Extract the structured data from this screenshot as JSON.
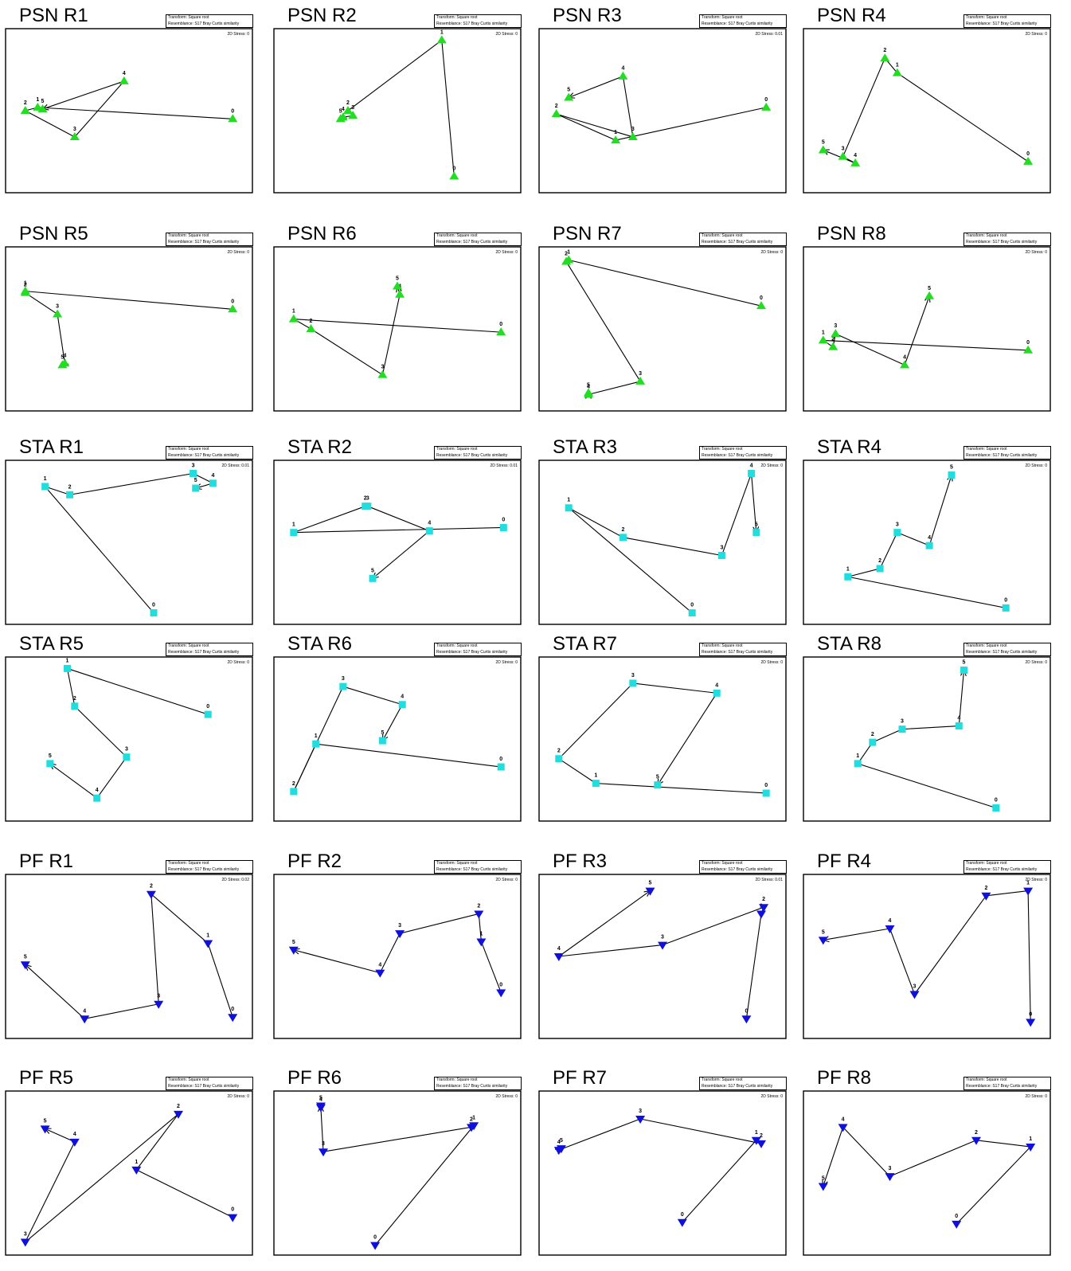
{
  "chart_data": [
    {
      "title": "PSN R1",
      "transform": "Transform: Square root",
      "resemblance": "Resemblance: S17 Bray Curtis similarity",
      "stress": "2D Stress: 0",
      "marker": "triangle-up",
      "color": "#22dd22",
      "points": [
        {
          "label": "0",
          "x": 0.92,
          "y": 0.55
        },
        {
          "label": "1",
          "x": 0.13,
          "y": 0.48
        },
        {
          "label": "2",
          "x": 0.08,
          "y": 0.5
        },
        {
          "label": "3",
          "x": 0.28,
          "y": 0.66
        },
        {
          "label": "4",
          "x": 0.48,
          "y": 0.32
        },
        {
          "label": "5",
          "x": 0.15,
          "y": 0.49
        }
      ]
    },
    {
      "title": "PSN R2",
      "transform": "Transform: Square root",
      "resemblance": "Resemblance: S17 Bray Curtis similarity",
      "stress": "2D Stress: 0",
      "marker": "triangle-up",
      "color": "#22dd22",
      "points": [
        {
          "label": "0",
          "x": 0.73,
          "y": 0.9
        },
        {
          "label": "1",
          "x": 0.68,
          "y": 0.07
        },
        {
          "label": "2",
          "x": 0.3,
          "y": 0.5
        },
        {
          "label": "3",
          "x": 0.32,
          "y": 0.53
        },
        {
          "label": "4",
          "x": 0.28,
          "y": 0.54
        },
        {
          "label": "5",
          "x": 0.27,
          "y": 0.55
        }
      ]
    },
    {
      "title": "PSN R3",
      "transform": "Transform: Square root",
      "resemblance": "Resemblance: S17 Bray Curtis similarity",
      "stress": "2D Stress: 0.01",
      "marker": "triangle-up",
      "color": "#22dd22",
      "points": [
        {
          "label": "0",
          "x": 0.92,
          "y": 0.48
        },
        {
          "label": "1",
          "x": 0.31,
          "y": 0.68
        },
        {
          "label": "2",
          "x": 0.07,
          "y": 0.52
        },
        {
          "label": "3",
          "x": 0.38,
          "y": 0.66
        },
        {
          "label": "4",
          "x": 0.34,
          "y": 0.29
        },
        {
          "label": "5",
          "x": 0.12,
          "y": 0.42
        }
      ]
    },
    {
      "title": "PSN R4",
      "transform": "Transform: Square root",
      "resemblance": "Resemblance: S17 Bray Curtis similarity",
      "stress": "2D Stress: 0",
      "marker": "triangle-up",
      "color": "#22dd22",
      "points": [
        {
          "label": "0",
          "x": 0.91,
          "y": 0.81
        },
        {
          "label": "1",
          "x": 0.38,
          "y": 0.27
        },
        {
          "label": "2",
          "x": 0.33,
          "y": 0.18
        },
        {
          "label": "3",
          "x": 0.16,
          "y": 0.78
        },
        {
          "label": "4",
          "x": 0.21,
          "y": 0.82
        },
        {
          "label": "5",
          "x": 0.08,
          "y": 0.74
        }
      ]
    },
    {
      "title": "PSN R5",
      "transform": "Transform: Square root",
      "resemblance": "Resemblance: S17 Bray Curtis similarity",
      "stress": "2D Stress: 0",
      "marker": "triangle-up",
      "color": "#22dd22",
      "points": [
        {
          "label": "0",
          "x": 0.92,
          "y": 0.38
        },
        {
          "label": "1",
          "x": 0.08,
          "y": 0.27
        },
        {
          "label": "2",
          "x": 0.08,
          "y": 0.28
        },
        {
          "label": "3",
          "x": 0.21,
          "y": 0.41
        },
        {
          "label": "4",
          "x": 0.24,
          "y": 0.71
        },
        {
          "label": "5",
          "x": 0.23,
          "y": 0.72
        }
      ]
    },
    {
      "title": "PSN R6",
      "transform": "Transform: Square root",
      "resemblance": "Resemblance: S17 Bray Curtis similarity",
      "stress": "2D Stress: 0",
      "marker": "triangle-up",
      "color": "#22dd22",
      "points": [
        {
          "label": "0",
          "x": 0.92,
          "y": 0.52
        },
        {
          "label": "1",
          "x": 0.08,
          "y": 0.44
        },
        {
          "label": "2",
          "x": 0.15,
          "y": 0.5
        },
        {
          "label": "3",
          "x": 0.44,
          "y": 0.78
        },
        {
          "label": "4",
          "x": 0.51,
          "y": 0.29
        },
        {
          "label": "5",
          "x": 0.5,
          "y": 0.24
        }
      ]
    },
    {
      "title": "PSN R7",
      "transform": "Transform: Square root",
      "resemblance": "Resemblance: S17 Bray Curtis similarity",
      "stress": "2D Stress: 0",
      "marker": "triangle-up",
      "color": "#22dd22",
      "points": [
        {
          "label": "0",
          "x": 0.9,
          "y": 0.36
        },
        {
          "label": "1",
          "x": 0.12,
          "y": 0.08
        },
        {
          "label": "2",
          "x": 0.11,
          "y": 0.09
        },
        {
          "label": "3",
          "x": 0.41,
          "y": 0.82
        },
        {
          "label": "4",
          "x": 0.2,
          "y": 0.9
        },
        {
          "label": "5",
          "x": 0.2,
          "y": 0.89
        }
      ]
    },
    {
      "title": "PSN R8",
      "transform": "Transform: Square root",
      "resemblance": "Resemblance: S17 Bray Curtis similarity",
      "stress": "2D Stress: 0",
      "marker": "triangle-up",
      "color": "#22dd22",
      "points": [
        {
          "label": "0",
          "x": 0.91,
          "y": 0.63
        },
        {
          "label": "1",
          "x": 0.08,
          "y": 0.57
        },
        {
          "label": "2",
          "x": 0.12,
          "y": 0.61
        },
        {
          "label": "3",
          "x": 0.13,
          "y": 0.53
        },
        {
          "label": "4",
          "x": 0.41,
          "y": 0.72
        },
        {
          "label": "5",
          "x": 0.51,
          "y": 0.3
        }
      ]
    },
    {
      "title": "STA R1",
      "transform": "Transform: Square root",
      "resemblance": "Resemblance: S17 Bray Curtis similarity",
      "stress": "2D Stress: 0.01",
      "marker": "square",
      "color": "#22dddd",
      "points": [
        {
          "label": "0",
          "x": 0.6,
          "y": 0.93
        },
        {
          "label": "1",
          "x": 0.16,
          "y": 0.16
        },
        {
          "label": "2",
          "x": 0.26,
          "y": 0.21
        },
        {
          "label": "3",
          "x": 0.76,
          "y": 0.08
        },
        {
          "label": "4",
          "x": 0.84,
          "y": 0.14
        },
        {
          "label": "5",
          "x": 0.77,
          "y": 0.17
        }
      ]
    },
    {
      "title": "STA R2",
      "transform": "Transform: Square root",
      "resemblance": "Resemblance: S17 Bray Curtis similarity",
      "stress": "2D Stress: 0.01",
      "marker": "square",
      "color": "#22dddd",
      "points": [
        {
          "label": "0",
          "x": 0.93,
          "y": 0.41
        },
        {
          "label": "1",
          "x": 0.08,
          "y": 0.44
        },
        {
          "label": "2",
          "x": 0.37,
          "y": 0.28
        },
        {
          "label": "3",
          "x": 0.38,
          "y": 0.28
        },
        {
          "label": "4",
          "x": 0.63,
          "y": 0.43
        },
        {
          "label": "5",
          "x": 0.4,
          "y": 0.72
        }
      ]
    },
    {
      "title": "STA R3",
      "transform": "Transform: Square root",
      "resemblance": "Resemblance: S17 Bray Curtis similarity",
      "stress": "2D Stress: 0",
      "marker": "square",
      "color": "#22dddd",
      "points": [
        {
          "label": "0",
          "x": 0.62,
          "y": 0.93
        },
        {
          "label": "1",
          "x": 0.12,
          "y": 0.29
        },
        {
          "label": "2",
          "x": 0.34,
          "y": 0.47
        },
        {
          "label": "3",
          "x": 0.74,
          "y": 0.58
        },
        {
          "label": "4",
          "x": 0.86,
          "y": 0.08
        },
        {
          "label": "5",
          "x": 0.88,
          "y": 0.44
        }
      ]
    },
    {
      "title": "STA R4",
      "transform": "Transform: Square root",
      "resemblance": "Resemblance: S17 Bray Curtis similarity",
      "stress": "2D Stress: 0",
      "marker": "square",
      "color": "#22dddd",
      "points": [
        {
          "label": "0",
          "x": 0.82,
          "y": 0.9
        },
        {
          "label": "1",
          "x": 0.18,
          "y": 0.71
        },
        {
          "label": "2",
          "x": 0.31,
          "y": 0.66
        },
        {
          "label": "3",
          "x": 0.38,
          "y": 0.44
        },
        {
          "label": "4",
          "x": 0.51,
          "y": 0.52
        },
        {
          "label": "5",
          "x": 0.6,
          "y": 0.09
        }
      ]
    },
    {
      "title": "STA R5",
      "transform": "Transform: Square root",
      "resemblance": "Resemblance: S17 Bray Curtis similarity",
      "stress": "2D Stress: 0",
      "marker": "square",
      "color": "#22dddd",
      "points": [
        {
          "label": "0",
          "x": 0.82,
          "y": 0.35
        },
        {
          "label": "1",
          "x": 0.25,
          "y": 0.07
        },
        {
          "label": "2",
          "x": 0.28,
          "y": 0.3
        },
        {
          "label": "3",
          "x": 0.49,
          "y": 0.61
        },
        {
          "label": "4",
          "x": 0.37,
          "y": 0.86
        },
        {
          "label": "5",
          "x": 0.18,
          "y": 0.65
        }
      ]
    },
    {
      "title": "STA R6",
      "transform": "Transform: Square root",
      "resemblance": "Resemblance: S17 Bray Curtis similarity",
      "stress": "2D Stress: 0",
      "marker": "square",
      "color": "#22dddd",
      "points": [
        {
          "label": "0",
          "x": 0.92,
          "y": 0.67
        },
        {
          "label": "1",
          "x": 0.17,
          "y": 0.53
        },
        {
          "label": "2",
          "x": 0.08,
          "y": 0.82
        },
        {
          "label": "3",
          "x": 0.28,
          "y": 0.18
        },
        {
          "label": "4",
          "x": 0.52,
          "y": 0.29
        },
        {
          "label": "5",
          "x": 0.44,
          "y": 0.51
        }
      ]
    },
    {
      "title": "STA R7",
      "transform": "Transform: Square root",
      "resemblance": "Resemblance: S17 Bray Curtis similarity",
      "stress": "2D Stress: 0",
      "marker": "square",
      "color": "#22dddd",
      "points": [
        {
          "label": "0",
          "x": 0.92,
          "y": 0.83
        },
        {
          "label": "1",
          "x": 0.23,
          "y": 0.77
        },
        {
          "label": "2",
          "x": 0.08,
          "y": 0.62
        },
        {
          "label": "3",
          "x": 0.38,
          "y": 0.16
        },
        {
          "label": "4",
          "x": 0.72,
          "y": 0.22
        },
        {
          "label": "5",
          "x": 0.48,
          "y": 0.78
        }
      ]
    },
    {
      "title": "STA R8",
      "transform": "Transform: Square root",
      "resemblance": "Resemblance: S17 Bray Curtis similarity",
      "stress": "2D Stress: 0",
      "marker": "square",
      "color": "#22dddd",
      "points": [
        {
          "label": "0",
          "x": 0.78,
          "y": 0.92
        },
        {
          "label": "1",
          "x": 0.22,
          "y": 0.65
        },
        {
          "label": "2",
          "x": 0.28,
          "y": 0.52
        },
        {
          "label": "3",
          "x": 0.4,
          "y": 0.44
        },
        {
          "label": "4",
          "x": 0.63,
          "y": 0.42
        },
        {
          "label": "5",
          "x": 0.65,
          "y": 0.08
        }
      ]
    },
    {
      "title": "PF R1",
      "transform": "Transform: Square root",
      "resemblance": "Resemblance: S17 Bray Curtis similarity",
      "stress": "2D Stress: 0.02",
      "marker": "triangle-down",
      "color": "#1010dd",
      "points": [
        {
          "label": "0",
          "x": 0.92,
          "y": 0.87
        },
        {
          "label": "1",
          "x": 0.82,
          "y": 0.42
        },
        {
          "label": "2",
          "x": 0.59,
          "y": 0.12
        },
        {
          "label": "3",
          "x": 0.62,
          "y": 0.79
        },
        {
          "label": "4",
          "x": 0.32,
          "y": 0.88
        },
        {
          "label": "5",
          "x": 0.08,
          "y": 0.55
        }
      ]
    },
    {
      "title": "PF R2",
      "transform": "Transform: Square root",
      "resemblance": "Resemblance: S17 Bray Curtis similarity",
      "stress": "2D Stress: 0",
      "marker": "triangle-down",
      "color": "#1010dd",
      "points": [
        {
          "label": "0",
          "x": 0.92,
          "y": 0.72
        },
        {
          "label": "1",
          "x": 0.84,
          "y": 0.41
        },
        {
          "label": "2",
          "x": 0.83,
          "y": 0.24
        },
        {
          "label": "3",
          "x": 0.51,
          "y": 0.36
        },
        {
          "label": "4",
          "x": 0.43,
          "y": 0.6
        },
        {
          "label": "5",
          "x": 0.08,
          "y": 0.46
        }
      ]
    },
    {
      "title": "PF R3",
      "transform": "Transform: Square root",
      "resemblance": "Resemblance: S17 Bray Curtis similarity",
      "stress": "2D Stress: 0.01",
      "marker": "triangle-down",
      "color": "#1010dd",
      "points": [
        {
          "label": "0",
          "x": 0.84,
          "y": 0.88
        },
        {
          "label": "1",
          "x": 0.9,
          "y": 0.24
        },
        {
          "label": "2",
          "x": 0.91,
          "y": 0.2
        },
        {
          "label": "3",
          "x": 0.5,
          "y": 0.43
        },
        {
          "label": "4",
          "x": 0.08,
          "y": 0.5
        },
        {
          "label": "5",
          "x": 0.45,
          "y": 0.1
        }
      ]
    },
    {
      "title": "PF R4",
      "transform": "Transform: Square root",
      "resemblance": "Resemblance: S17 Bray Curtis similarity",
      "stress": "2D Stress: 0",
      "marker": "triangle-down",
      "color": "#1010dd",
      "points": [
        {
          "label": "0",
          "x": 0.92,
          "y": 0.9
        },
        {
          "label": "1",
          "x": 0.91,
          "y": 0.1
        },
        {
          "label": "2",
          "x": 0.74,
          "y": 0.13
        },
        {
          "label": "3",
          "x": 0.45,
          "y": 0.73
        },
        {
          "label": "4",
          "x": 0.35,
          "y": 0.33
        },
        {
          "label": "5",
          "x": 0.08,
          "y": 0.4
        }
      ]
    },
    {
      "title": "PF R5",
      "transform": "Transform: Square root",
      "resemblance": "Resemblance: S17 Bray Curtis similarity",
      "stress": "2D Stress: 0",
      "marker": "triangle-down",
      "color": "#1010dd",
      "points": [
        {
          "label": "0",
          "x": 0.92,
          "y": 0.77
        },
        {
          "label": "1",
          "x": 0.53,
          "y": 0.48
        },
        {
          "label": "2",
          "x": 0.7,
          "y": 0.14
        },
        {
          "label": "3",
          "x": 0.08,
          "y": 0.92
        },
        {
          "label": "4",
          "x": 0.28,
          "y": 0.31
        },
        {
          "label": "5",
          "x": 0.16,
          "y": 0.23
        }
      ]
    },
    {
      "title": "PF R6",
      "transform": "Transform: Square root",
      "resemblance": "Resemblance: S17 Bray Curtis similarity",
      "stress": "2D Stress: 0",
      "marker": "triangle-down",
      "color": "#1010dd",
      "points": [
        {
          "label": "0",
          "x": 0.41,
          "y": 0.94
        },
        {
          "label": "1",
          "x": 0.81,
          "y": 0.21
        },
        {
          "label": "2",
          "x": 0.8,
          "y": 0.22
        },
        {
          "label": "3",
          "x": 0.2,
          "y": 0.37
        },
        {
          "label": "4",
          "x": 0.19,
          "y": 0.1
        },
        {
          "label": "5",
          "x": 0.19,
          "y": 0.09
        }
      ]
    },
    {
      "title": "PF R7",
      "transform": "Transform: Square root",
      "resemblance": "Resemblance: S17 Bray Curtis similarity",
      "stress": "2D Stress: 0",
      "marker": "triangle-down",
      "color": "#1010dd",
      "points": [
        {
          "label": "0",
          "x": 0.58,
          "y": 0.8
        },
        {
          "label": "1",
          "x": 0.88,
          "y": 0.3
        },
        {
          "label": "2",
          "x": 0.9,
          "y": 0.32
        },
        {
          "label": "3",
          "x": 0.41,
          "y": 0.17
        },
        {
          "label": "4",
          "x": 0.08,
          "y": 0.36
        },
        {
          "label": "5",
          "x": 0.09,
          "y": 0.35
        }
      ]
    },
    {
      "title": "PF R8",
      "transform": "Transform: Square root",
      "resemblance": "Resemblance: S17 Bray Curtis similarity",
      "stress": "2D Stress: 0",
      "marker": "triangle-down",
      "color": "#1010dd",
      "points": [
        {
          "label": "0",
          "x": 0.62,
          "y": 0.81
        },
        {
          "label": "1",
          "x": 0.92,
          "y": 0.34
        },
        {
          "label": "2",
          "x": 0.7,
          "y": 0.3
        },
        {
          "label": "3",
          "x": 0.35,
          "y": 0.52
        },
        {
          "label": "4",
          "x": 0.16,
          "y": 0.22
        },
        {
          "label": "5",
          "x": 0.08,
          "y": 0.58
        }
      ]
    }
  ]
}
